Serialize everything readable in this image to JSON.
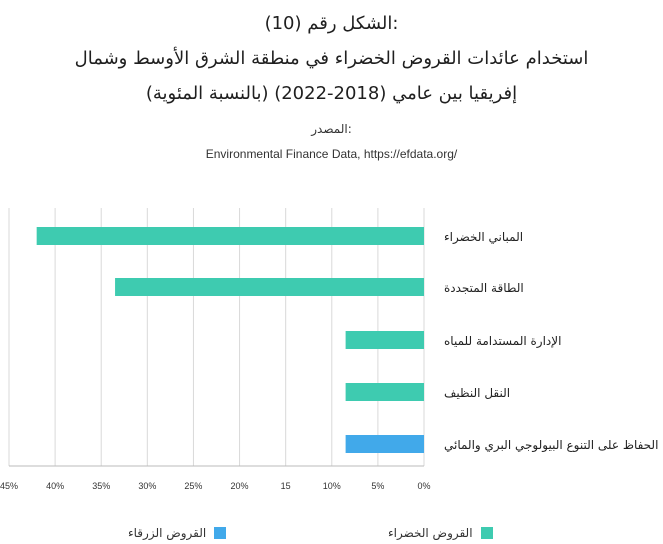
{
  "header": {
    "figure_label": "الشكل رقم (10):",
    "title_line1": "استخدام عائدات القروض الخضراء في منطقة الشرق الأوسط وشمال",
    "title_line2": "إفريقيا بين عامي (2018-2022) (بالنسبة المئوية)",
    "source_label": "المصدر:",
    "source_text": "Environmental Finance Data, https://efdata.org/"
  },
  "colors": {
    "green": "#3ecbb0",
    "blue": "#41a9ea",
    "grid": "#d9d9d9",
    "text": "#222222"
  },
  "chart_data": {
    "type": "bar",
    "orientation": "horizontal",
    "x_reversed": true,
    "categories": [
      "المباني الخضراء",
      "الطاقة المتجددة",
      "الإدارة المستدامة للمياه",
      "النقل النظيف",
      "الحفاظ على التنوع البيولوجي البري والمائي"
    ],
    "values": [
      42,
      33.5,
      8.5,
      8.5,
      8.5
    ],
    "bar_colors": [
      "green",
      "green",
      "green",
      "green",
      "blue"
    ],
    "xlim": [
      0,
      45
    ],
    "ticks": [
      0,
      5,
      10,
      15,
      20,
      25,
      30,
      35,
      40,
      45
    ],
    "tick_labels": [
      "0%",
      "5%",
      "10%",
      "15",
      "20%",
      "25%",
      "30%",
      "35%",
      "40%",
      "45%"
    ],
    "grid": true,
    "legend_position": "bottom"
  },
  "legend": {
    "green_label": "القروض الخضراء",
    "blue_label": "القروض الزرقاء"
  }
}
